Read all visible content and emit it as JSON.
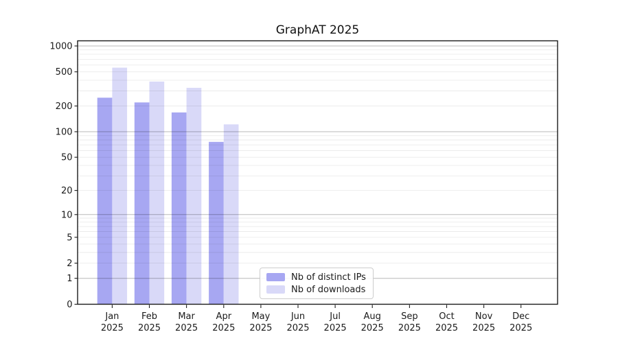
{
  "title": "GraphAT 2025",
  "colors": {
    "series_distinct_ips": "#a7a7f2",
    "series_downloads": "#d9d9f8",
    "axis_text": "#1a1a1a",
    "plot_border": "#1a1a1a",
    "major_gridline": "rgba(0,0,0,0.28)",
    "minor_gridline": "rgba(0,0,0,0.08)",
    "legend_border": "#cccccc",
    "background": "#ffffff"
  },
  "chart_data": {
    "type": "bar",
    "title": "GraphAT 2025",
    "categories": [
      "Jan",
      "Feb",
      "Mar",
      "Apr",
      "May",
      "Jun",
      "Jul",
      "Aug",
      "Sep",
      "Oct",
      "Nov",
      "Dec"
    ],
    "category_year": "2025",
    "series": [
      {
        "name": "Nb of distinct IPs",
        "color": "#a7a7f2",
        "values": [
          250,
          220,
          168,
          76,
          null,
          null,
          null,
          null,
          null,
          null,
          null,
          null
        ]
      },
      {
        "name": "Nb of downloads",
        "color": "#d9d9f8",
        "values": [
          560,
          385,
          325,
          122,
          null,
          null,
          null,
          null,
          null,
          null,
          null,
          null
        ]
      }
    ],
    "y_axis": {
      "scale": "log1p",
      "ticks": [
        0,
        1,
        2,
        5,
        10,
        20,
        50,
        100,
        200,
        500,
        1000
      ],
      "range": [
        0,
        1000
      ],
      "major_grid_values": [
        1,
        10,
        100,
        1000
      ]
    },
    "x_axis": {
      "label_format": "month over year, two lines"
    },
    "grid": "horizontal major + minor, drawn over bars",
    "legend_position": "lower-center inside plot area"
  }
}
